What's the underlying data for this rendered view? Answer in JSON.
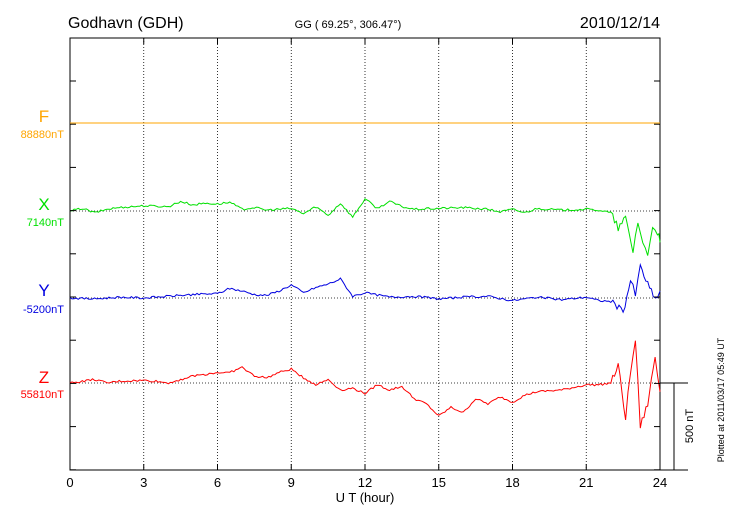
{
  "chart_data": {
    "type": "line",
    "title": "Godhavn (GDH)",
    "subtitle": "GG ( 69.25°, 306.47°)",
    "date": "2010/12/14",
    "xlabel": "U T (hour)",
    "xlim": [
      0,
      24
    ],
    "xticks": [
      0,
      3,
      6,
      9,
      12,
      15,
      18,
      21,
      24
    ],
    "grid": true,
    "scale_bar_label": "500 nT",
    "scale_bar_nT": 500,
    "side_note": "Plotted at 2011/03/17 05:49 UT",
    "series": [
      {
        "name": "F",
        "baseline_label": "88880nT",
        "color": "#ffa500",
        "x": [
          0,
          24
        ],
        "y": [
          0,
          0
        ]
      },
      {
        "name": "X",
        "baseline_label": "7140nT",
        "color": "#00e000",
        "x": [
          0,
          0.5,
          1,
          1.5,
          2,
          3,
          4,
          4.5,
          5,
          5.5,
          6,
          6.5,
          7,
          7.5,
          8,
          9,
          9.5,
          10,
          10.5,
          11,
          11.5,
          12,
          12.5,
          13,
          13.5,
          14,
          15,
          16,
          17,
          17.5,
          18,
          18.5,
          19,
          20,
          21,
          21.5,
          22,
          22.3,
          22.6,
          22.9,
          23.1,
          23.3,
          23.5,
          23.7,
          23.9,
          24
        ],
        "y": [
          0,
          15,
          -10,
          10,
          20,
          30,
          25,
          55,
          35,
          45,
          40,
          50,
          10,
          20,
          5,
          15,
          -15,
          25,
          -25,
          45,
          -35,
          70,
          15,
          55,
          25,
          10,
          15,
          20,
          10,
          -5,
          10,
          -10,
          15,
          5,
          10,
          5,
          -10,
          -100,
          -40,
          -230,
          -60,
          -180,
          -260,
          -80,
          -120,
          -180
        ]
      },
      {
        "name": "Y",
        "baseline_label": "-5200nT",
        "color": "#0000e0",
        "x": [
          0,
          1,
          2,
          3,
          4,
          5,
          6,
          6.5,
          7,
          7.5,
          8,
          8.5,
          9,
          9.5,
          10,
          10.5,
          11,
          11.5,
          12,
          13,
          14,
          15,
          16,
          17,
          18,
          19,
          20,
          21,
          21.5,
          22,
          22.5,
          22.8,
          23,
          23.2,
          23.5,
          23.8,
          24
        ],
        "y": [
          0,
          -5,
          5,
          0,
          10,
          20,
          25,
          55,
          40,
          20,
          15,
          40,
          75,
          30,
          60,
          80,
          110,
          10,
          30,
          5,
          10,
          -5,
          5,
          10,
          -15,
          5,
          -10,
          5,
          -15,
          -20,
          -80,
          100,
          20,
          180,
          80,
          -10,
          40
        ]
      },
      {
        "name": "Z",
        "baseline_label": "55810nT",
        "color": "#ff0000",
        "x": [
          0,
          0.5,
          1,
          1.5,
          2,
          3,
          3.5,
          4,
          4.5,
          5,
          6,
          6.5,
          7,
          7.5,
          8,
          8.5,
          9,
          9.5,
          10,
          10.5,
          11,
          11.5,
          12,
          12.5,
          13,
          13.5,
          14,
          14.5,
          15,
          15.5,
          16,
          16.5,
          17,
          17.5,
          18,
          18.5,
          19,
          20,
          21,
          21.5,
          22,
          22.3,
          22.6,
          22.8,
          23,
          23.2,
          23.5,
          23.8,
          24
        ],
        "y": [
          0,
          10,
          20,
          0,
          10,
          15,
          10,
          0,
          20,
          40,
          60,
          60,
          90,
          40,
          30,
          60,
          80,
          30,
          -10,
          20,
          -40,
          -30,
          -60,
          -10,
          -40,
          -20,
          -90,
          -120,
          -190,
          -140,
          -170,
          -90,
          -120,
          -80,
          -110,
          -70,
          -50,
          -40,
          -10,
          -10,
          0,
          100,
          -200,
          60,
          250,
          -250,
          -120,
          150,
          -50
        ]
      }
    ]
  }
}
